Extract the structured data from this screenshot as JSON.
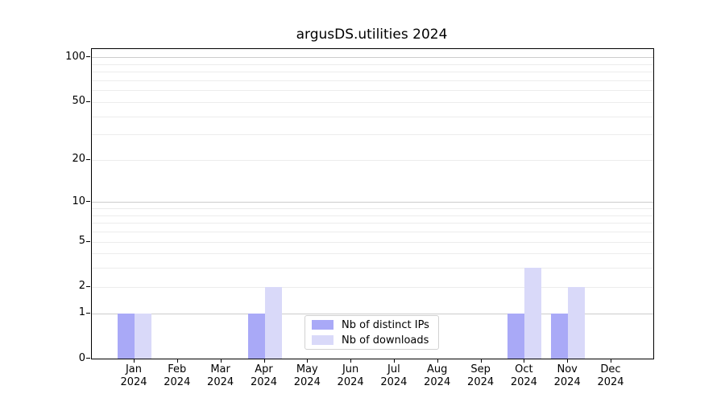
{
  "chart_data": {
    "type": "bar",
    "title": "argusDS.utilities 2024",
    "categories": [
      "Jan",
      "Feb",
      "Mar",
      "Apr",
      "May",
      "Jun",
      "Jul",
      "Aug",
      "Sep",
      "Oct",
      "Nov",
      "Dec"
    ],
    "year_label": "2024",
    "series": [
      {
        "name": "Nb of distinct IPs",
        "color": "#a9a9f7",
        "values": [
          1,
          0,
          0,
          1,
          0,
          0,
          0,
          0,
          0,
          1,
          1,
          0
        ]
      },
      {
        "name": "Nb of downloads",
        "color": "#d9d9f9",
        "values": [
          1,
          0,
          0,
          2,
          0,
          0,
          0,
          0,
          0,
          3,
          2,
          0
        ]
      }
    ],
    "yscale": "log1p",
    "ylim": [
      0,
      113
    ],
    "yticks": [
      0,
      1,
      2,
      5,
      10,
      20,
      50,
      100
    ],
    "major_gridlines": [
      1,
      10,
      100
    ],
    "minor_gridlines": [
      2,
      3,
      4,
      5,
      6,
      7,
      8,
      9,
      20,
      30,
      40,
      50,
      60,
      70,
      80,
      90
    ],
    "grid": "horizontal",
    "legend_position": "lower center",
    "axis_color": "#000000",
    "background_color": "#ffffff"
  }
}
